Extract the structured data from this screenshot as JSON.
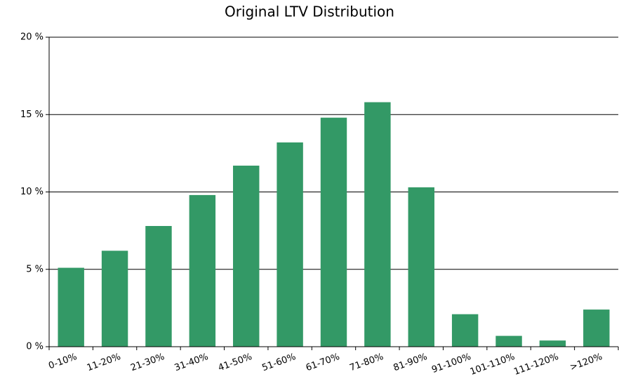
{
  "chart_data": {
    "type": "bar",
    "title": "Original LTV Distribution",
    "categories": [
      "0-10%",
      "11-20%",
      "21-30%",
      "31-40%",
      "41-50%",
      "51-60%",
      "61-70%",
      "71-80%",
      "81-90%",
      "91-100%",
      "101-110%",
      "111-120%",
      ">120%"
    ],
    "values": [
      5.1,
      6.2,
      7.8,
      9.8,
      11.7,
      13.2,
      14.8,
      15.8,
      10.3,
      2.1,
      0.7,
      0.4,
      2.4
    ],
    "color": "#339966",
    "ylim": [
      0,
      20
    ],
    "yticks": [
      {
        "value": 0,
        "label": "0 %"
      },
      {
        "value": 5,
        "label": "5 %"
      },
      {
        "value": 10,
        "label": "10 %"
      },
      {
        "value": 15,
        "label": "15 %"
      },
      {
        "value": 20,
        "label": "20 %"
      }
    ],
    "grid": true
  }
}
